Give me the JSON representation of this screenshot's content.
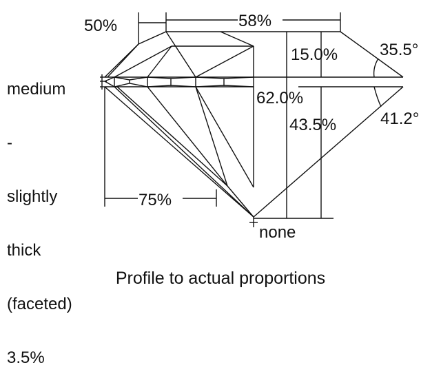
{
  "labels": {
    "star_length": "50%",
    "table": "58%",
    "crown_height": "15.0%",
    "crown_angle": "35.5°",
    "total_depth": "62.0%",
    "pavilion_depth": "43.5%",
    "pavilion_angle": "41.2°",
    "lower_half": "75%",
    "culet": "none",
    "girdle_lines": [
      "medium",
      "-",
      "slightly",
      "thick",
      "(faceted)",
      "3.5%"
    ]
  },
  "caption": "Profile to actual proportions",
  "colors": {
    "line": "#111111",
    "background": "#ffffff"
  }
}
